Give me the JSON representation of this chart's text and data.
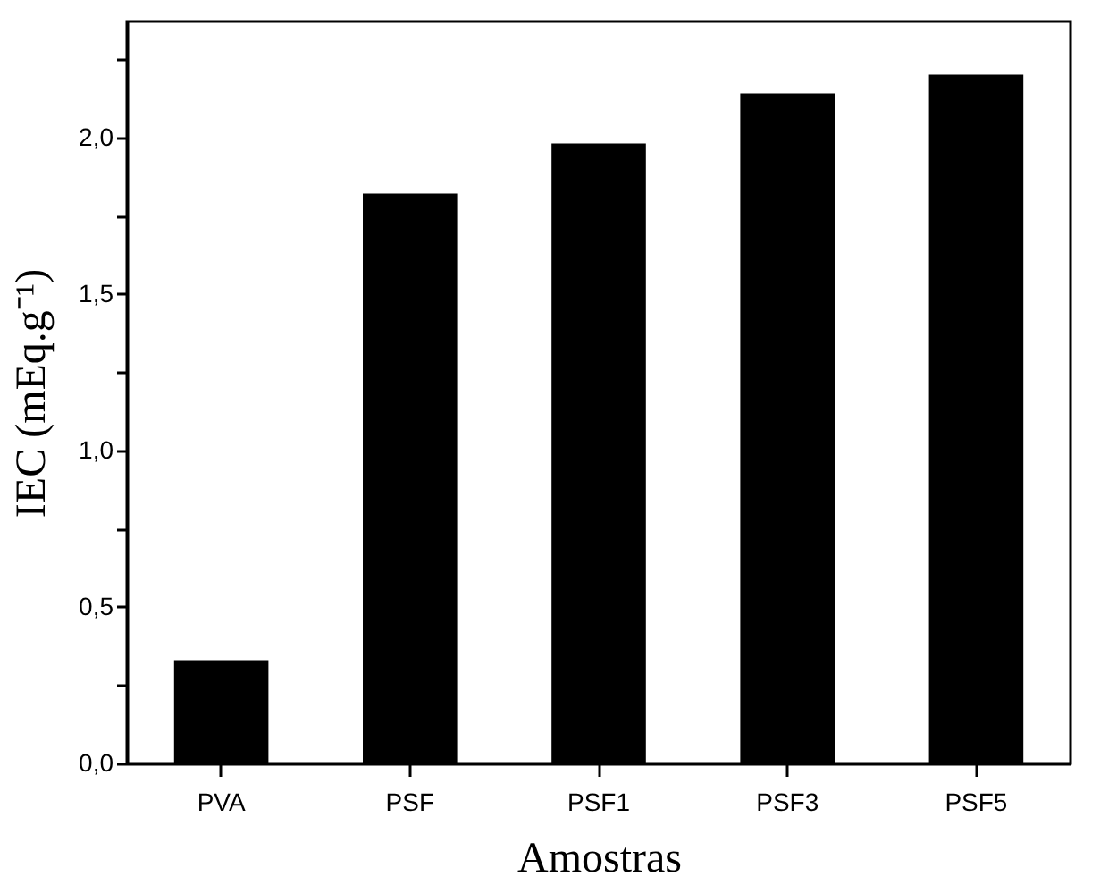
{
  "chart_data": {
    "type": "bar",
    "xlabel": "Amostras",
    "ylabel": "IEC (mEq.g⁻¹)",
    "categories": [
      "PVA",
      "PSF",
      "PSF1",
      "PSF3",
      "PSF5"
    ],
    "values": [
      0.33,
      1.82,
      1.98,
      2.14,
      2.2
    ],
    "color": "#000000",
    "ylim": [
      0,
      2.37
    ],
    "yticks": [
      {
        "value": 0,
        "label": "0,0"
      },
      {
        "value": 0.25,
        "label": null
      },
      {
        "value": 0.5,
        "label": "0,5"
      },
      {
        "value": 0.75,
        "label": null
      },
      {
        "value": 1.0,
        "label": "1,0"
      },
      {
        "value": 1.25,
        "label": null
      },
      {
        "value": 1.5,
        "label": "1,5"
      },
      {
        "value": 1.75,
        "label": null
      },
      {
        "value": 2.0,
        "label": "2,0"
      },
      {
        "value": 2.25,
        "label": null
      }
    ],
    "grid": false
  }
}
